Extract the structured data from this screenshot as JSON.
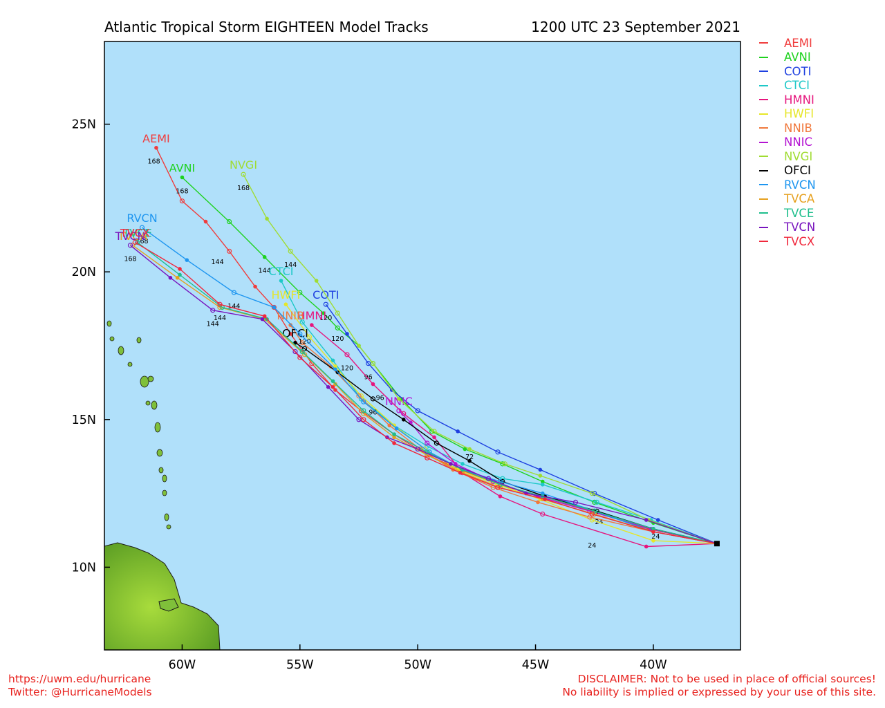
{
  "title": "Atlantic Tropical Storm EIGHTEEN Model Tracks",
  "timestamp": "1200 UTC 23 September 2021",
  "footer": {
    "url": "https://uwm.edu/hurricane",
    "twitter": "Twitter: @HurricaneModels",
    "disclaimer1": "DISCLAIMER: Not to be used in place of official sources!",
    "disclaimer2": "No liability is implied or expressed by your use of this site."
  },
  "colors": {
    "ocean": "#b0e0fa",
    "land": "#7fc03a",
    "land_dark": "#4e8f1d"
  },
  "map": {
    "lon_ticks": [
      {
        "lon": -60,
        "label": "60W"
      },
      {
        "lon": -55,
        "label": "55W"
      },
      {
        "lon": -50,
        "label": "50W"
      },
      {
        "lon": -45,
        "label": "45W"
      },
      {
        "lon": -40,
        "label": "40W"
      }
    ],
    "lat_ticks": [
      {
        "lat": 25,
        "label": "25N"
      },
      {
        "lat": 20,
        "label": "20N"
      },
      {
        "lat": 15,
        "label": "15N"
      },
      {
        "lat": 10,
        "label": "10N"
      }
    ],
    "lon_range": [
      -63.3,
      -36.3
    ],
    "lat_range": [
      7.2,
      27.8
    ],
    "storm_position": {
      "lon": -37.3,
      "lat": 10.8
    }
  },
  "chart_data": {
    "type": "track_map",
    "models": [
      {
        "name": "AEMI",
        "color": "#f03c3c",
        "label": "AEMI",
        "points": [
          [
            -37.3,
            10.8
          ],
          [
            -40.2,
            11.3
          ],
          [
            -42.6,
            11.9
          ],
          [
            -44.7,
            12.4
          ],
          [
            -46.6,
            12.8
          ],
          [
            -48.2,
            13.3
          ],
          [
            -49.6,
            13.8
          ],
          [
            -51.0,
            14.5
          ],
          [
            -52.4,
            15.3
          ],
          [
            -53.5,
            16.0
          ],
          [
            -54.5,
            16.9
          ],
          [
            -55.4,
            17.9
          ],
          [
            -56.1,
            18.8
          ],
          [
            -56.9,
            19.5
          ],
          [
            -58.0,
            20.7
          ],
          [
            -59.0,
            21.7
          ],
          [
            -60.0,
            22.4
          ],
          [
            -61.1,
            24.2
          ]
        ],
        "tau_labels": [
          {
            "lon": -58.5,
            "lat": 20.5,
            "text": "144"
          },
          {
            "lon": -61.2,
            "lat": 23.9,
            "text": "168"
          }
        ]
      },
      {
        "name": "AVNI",
        "color": "#1ed21e",
        "label": "AVNI",
        "points": [
          [
            -37.3,
            10.8
          ],
          [
            -40.0,
            11.5
          ],
          [
            -42.5,
            12.2
          ],
          [
            -44.7,
            12.9
          ],
          [
            -46.4,
            13.5
          ],
          [
            -48.0,
            14.0
          ],
          [
            -49.4,
            14.6
          ],
          [
            -50.7,
            15.7
          ],
          [
            -51.9,
            16.9
          ],
          [
            -52.5,
            17.5
          ],
          [
            -53.4,
            18.1
          ],
          [
            -54.0,
            18.6
          ],
          [
            -55.0,
            19.3
          ],
          [
            -56.5,
            20.5
          ],
          [
            -58.0,
            21.7
          ],
          [
            -60.0,
            23.2
          ]
        ],
        "tau_labels": [
          {
            "lon": -53.4,
            "lat": 17.9,
            "text": "120"
          },
          {
            "lon": -56.5,
            "lat": 20.2,
            "text": "144"
          },
          {
            "lon": -60.0,
            "lat": 22.9,
            "text": "168"
          }
        ]
      },
      {
        "name": "COTI",
        "color": "#1e40e0",
        "label": "COTI",
        "points": [
          [
            -37.3,
            10.8
          ],
          [
            -39.8,
            11.6
          ],
          [
            -42.5,
            12.5
          ],
          [
            -44.8,
            13.3
          ],
          [
            -46.6,
            13.9
          ],
          [
            -48.3,
            14.6
          ],
          [
            -50.0,
            15.3
          ],
          [
            -51.1,
            16.0
          ],
          [
            -52.1,
            16.9
          ],
          [
            -53.0,
            17.9
          ],
          [
            -53.9,
            18.9
          ]
        ],
        "tau_labels": [
          {
            "lon": -53.9,
            "lat": 18.6,
            "text": "120"
          },
          {
            "lon": -52.1,
            "lat": 16.6,
            "text": "96"
          }
        ]
      },
      {
        "name": "CTCI",
        "color": "#1ec8c8",
        "label": "CTCI",
        "points": [
          [
            -37.3,
            10.8
          ],
          [
            -40.1,
            11.6
          ],
          [
            -42.4,
            12.2
          ],
          [
            -44.7,
            12.8
          ],
          [
            -46.4,
            13.0
          ],
          [
            -48.1,
            13.5
          ],
          [
            -49.6,
            14.1
          ],
          [
            -51.0,
            14.8
          ],
          [
            -52.4,
            15.7
          ],
          [
            -53.6,
            17.0
          ],
          [
            -54.9,
            18.3
          ],
          [
            -55.8,
            19.7
          ]
        ],
        "tau_labels": [
          {
            "lon": -42.3,
            "lat": 11.7,
            "text": "24"
          }
        ]
      },
      {
        "name": "HMNI",
        "color": "#e6147d",
        "label": "HMNI",
        "points": [
          [
            -37.3,
            10.8
          ],
          [
            -40.3,
            10.7
          ],
          [
            -44.7,
            11.8
          ],
          [
            -46.5,
            12.4
          ],
          [
            -48.1,
            13.2
          ],
          [
            -49.3,
            14.4
          ],
          [
            -50.6,
            15.2
          ],
          [
            -51.9,
            16.2
          ],
          [
            -53.0,
            17.2
          ],
          [
            -54.5,
            18.2
          ]
        ],
        "tau_labels": [
          {
            "lon": -42.6,
            "lat": 10.9,
            "text": "24"
          },
          {
            "lon": -53.0,
            "lat": 16.9,
            "text": "120"
          },
          {
            "lon": -51.6,
            "lat": 15.9,
            "text": "96"
          }
        ]
      },
      {
        "name": "HWFI",
        "color": "#e6e628",
        "label": "HWFI",
        "points": [
          [
            -37.3,
            10.8
          ],
          [
            -40.0,
            10.9
          ],
          [
            -42.6,
            11.6
          ],
          [
            -44.8,
            12.3
          ],
          [
            -46.6,
            12.8
          ],
          [
            -48.3,
            13.3
          ],
          [
            -49.7,
            14.0
          ],
          [
            -51.0,
            14.8
          ],
          [
            -52.4,
            15.8
          ],
          [
            -53.5,
            16.8
          ],
          [
            -54.6,
            17.8
          ],
          [
            -55.6,
            18.9
          ]
        ],
        "tau_labels": [
          {
            "lon": -39.9,
            "lat": 11.2,
            "text": "24"
          }
        ]
      },
      {
        "name": "NNIB",
        "color": "#f0783c",
        "label": "NNIB",
        "points": [
          [
            -37.3,
            10.8
          ],
          [
            -40.0,
            11.2
          ],
          [
            -42.7,
            11.7
          ],
          [
            -44.9,
            12.2
          ],
          [
            -46.8,
            12.7
          ],
          [
            -48.5,
            13.3
          ],
          [
            -49.9,
            14.0
          ],
          [
            -51.2,
            14.8
          ],
          [
            -52.5,
            15.8
          ],
          [
            -53.7,
            16.8
          ],
          [
            -54.9,
            17.6
          ],
          [
            -55.4,
            18.2
          ]
        ],
        "tau_labels": []
      },
      {
        "name": "NNIC",
        "color": "#b414d2",
        "label": "NNIC",
        "points": [
          [
            -37.3,
            10.8
          ],
          [
            -40.1,
            11.3
          ],
          [
            -42.7,
            11.9
          ],
          [
            -44.9,
            12.4
          ],
          [
            -46.8,
            12.9
          ],
          [
            -48.4,
            13.5
          ],
          [
            -49.6,
            14.2
          ],
          [
            -50.3,
            14.9
          ],
          [
            -50.8,
            15.3
          ]
        ],
        "tau_labels": []
      },
      {
        "name": "NVGI",
        "color": "#a0dc32",
        "label": "NVGI",
        "points": [
          [
            -37.3,
            10.8
          ],
          [
            -40.2,
            11.6
          ],
          [
            -42.6,
            12.5
          ],
          [
            -44.8,
            13.1
          ],
          [
            -46.3,
            13.5
          ],
          [
            -47.8,
            14.0
          ],
          [
            -49.3,
            14.6
          ],
          [
            -50.8,
            15.7
          ],
          [
            -51.9,
            16.9
          ],
          [
            -52.5,
            17.5
          ],
          [
            -53.4,
            18.6
          ],
          [
            -54.3,
            19.7
          ],
          [
            -55.4,
            20.7
          ],
          [
            -56.4,
            21.8
          ],
          [
            -57.4,
            23.3
          ]
        ],
        "tau_labels": [
          {
            "lon": -55.4,
            "lat": 20.4,
            "text": "144"
          },
          {
            "lon": -57.4,
            "lat": 23.0,
            "text": "168"
          }
        ]
      },
      {
        "name": "OFCI",
        "color": "#000000",
        "label": "OFCI",
        "points": [
          [
            -37.3,
            10.8
          ],
          [
            -40.0,
            11.3
          ],
          [
            -42.4,
            11.9
          ],
          [
            -44.6,
            12.4
          ],
          [
            -46.4,
            12.9
          ],
          [
            -47.8,
            13.6
          ],
          [
            -49.2,
            14.2
          ],
          [
            -50.6,
            15.0
          ],
          [
            -51.9,
            15.7
          ],
          [
            -53.4,
            16.6
          ],
          [
            -54.8,
            17.4
          ],
          [
            -55.2,
            17.6
          ]
        ],
        "tau_labels": [
          {
            "lon": -47.8,
            "lat": 13.9,
            "text": "72"
          },
          {
            "lon": -51.9,
            "lat": 15.4,
            "text": "96"
          },
          {
            "lon": -54.8,
            "lat": 17.8,
            "text": "120"
          }
        ]
      },
      {
        "name": "RVCN",
        "color": "#1e96f0",
        "label": "RVCN",
        "points": [
          [
            -37.3,
            10.8
          ],
          [
            -40.0,
            11.2
          ],
          [
            -42.5,
            11.9
          ],
          [
            -44.7,
            12.5
          ],
          [
            -46.5,
            12.9
          ],
          [
            -48.1,
            13.3
          ],
          [
            -49.5,
            13.9
          ],
          [
            -50.9,
            14.7
          ],
          [
            -52.3,
            15.6
          ],
          [
            -53.5,
            16.7
          ],
          [
            -55.0,
            17.9
          ],
          [
            -56.1,
            18.8
          ],
          [
            -57.8,
            19.3
          ],
          [
            -59.8,
            20.4
          ],
          [
            -61.7,
            21.5
          ]
        ],
        "tau_labels": [
          {
            "lon": -57.8,
            "lat": 19.0,
            "text": "144"
          },
          {
            "lon": -61.7,
            "lat": 21.2,
            "text": "168"
          }
        ]
      },
      {
        "name": "TVCA",
        "color": "#e6a01e",
        "label": "TVCA",
        "points": [
          [
            -37.3,
            10.8
          ],
          [
            -40.0,
            11.2
          ],
          [
            -42.5,
            11.8
          ],
          [
            -44.7,
            12.3
          ],
          [
            -46.5,
            12.7
          ],
          [
            -48.1,
            13.2
          ],
          [
            -49.6,
            13.8
          ],
          [
            -51.0,
            14.4
          ],
          [
            -52.3,
            15.2
          ],
          [
            -53.5,
            16.2
          ],
          [
            -54.8,
            17.2
          ],
          [
            -56.5,
            18.4
          ],
          [
            -58.4,
            18.8
          ],
          [
            -60.2,
            19.8
          ],
          [
            -62.1,
            20.9
          ]
        ],
        "tau_labels": []
      },
      {
        "name": "TVCE",
        "color": "#1ebe8c",
        "label": "TVCE",
        "points": [
          [
            -37.3,
            10.8
          ],
          [
            -40.0,
            11.3
          ],
          [
            -42.5,
            11.9
          ],
          [
            -44.7,
            12.4
          ],
          [
            -46.5,
            12.8
          ],
          [
            -48.1,
            13.3
          ],
          [
            -49.6,
            13.9
          ],
          [
            -51.0,
            14.5
          ],
          [
            -52.3,
            15.3
          ],
          [
            -53.6,
            16.3
          ],
          [
            -54.9,
            17.3
          ],
          [
            -56.4,
            18.4
          ],
          [
            -58.3,
            18.8
          ],
          [
            -60.1,
            19.9
          ],
          [
            -61.9,
            21.0
          ]
        ],
        "tau_labels": []
      },
      {
        "name": "TVCN",
        "color": "#7814be",
        "label": "TVCN",
        "points": [
          [
            -37.3,
            10.8
          ],
          [
            -40.3,
            11.6
          ],
          [
            -43.3,
            12.2
          ],
          [
            -45.4,
            12.5
          ],
          [
            -47.0,
            13.0
          ],
          [
            -48.6,
            13.5
          ],
          [
            -50.0,
            14.0
          ],
          [
            -51.3,
            14.4
          ],
          [
            -52.5,
            15.0
          ],
          [
            -53.8,
            16.1
          ],
          [
            -55.2,
            17.3
          ],
          [
            -56.6,
            18.4
          ],
          [
            -58.7,
            18.7
          ],
          [
            -60.5,
            19.8
          ],
          [
            -62.2,
            20.9
          ]
        ],
        "tau_labels": [
          {
            "lon": -58.7,
            "lat": 18.4,
            "text": "144"
          },
          {
            "lon": -62.2,
            "lat": 20.6,
            "text": "168"
          }
        ]
      },
      {
        "name": "TVCX",
        "color": "#f0283c",
        "label": "TVCX",
        "points": [
          [
            -37.3,
            10.8
          ],
          [
            -40.0,
            11.2
          ],
          [
            -42.6,
            11.8
          ],
          [
            -44.6,
            12.3
          ],
          [
            -46.6,
            12.7
          ],
          [
            -48.2,
            13.2
          ],
          [
            -49.6,
            13.7
          ],
          [
            -51.0,
            14.2
          ],
          [
            -52.3,
            15.0
          ],
          [
            -53.6,
            16.1
          ],
          [
            -55.0,
            17.1
          ],
          [
            -56.5,
            18.5
          ],
          [
            -58.4,
            18.9
          ],
          [
            -60.1,
            20.1
          ],
          [
            -62.0,
            21.0
          ]
        ],
        "tau_labels": [
          {
            "lon": -58.4,
            "lat": 18.6,
            "text": "144"
          }
        ]
      }
    ]
  }
}
